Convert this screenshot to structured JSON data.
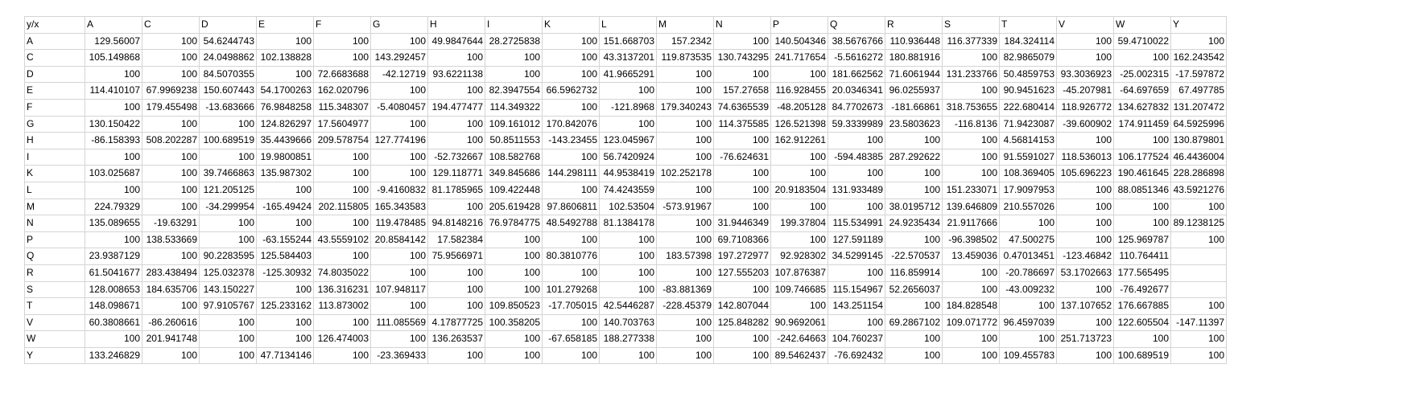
{
  "sheet": {
    "header": [
      "y/x",
      "A",
      "C",
      "D",
      "E",
      "F",
      "G",
      "H",
      "I",
      "K",
      "L",
      "M",
      "N",
      "P",
      "Q",
      "R",
      "S",
      "T",
      "V",
      "W",
      "Y"
    ],
    "rows": [
      [
        "A",
        "129.56007",
        "100",
        "54.6244743",
        "100",
        "100",
        "100",
        "49.9847644",
        "28.2725838",
        "100",
        "151.668703",
        "157.2342",
        "100",
        "140.504346",
        "38.5676766",
        "110.936448",
        "116.377339",
        "184.324114",
        "100",
        "59.4710022",
        "100"
      ],
      [
        "C",
        "105.149868",
        "100",
        "24.0498862",
        "102.138828",
        "100",
        "143.292457",
        "100",
        "100",
        "100",
        "43.3137201",
        "119.873535",
        "130.743295",
        "241.717654",
        "-5.5616272",
        "180.881916",
        "100",
        "82.9865079",
        "100",
        "100",
        "162.243542"
      ],
      [
        "D",
        "100",
        "100",
        "84.5070355",
        "100",
        "72.6683688",
        "-42.12719",
        "93.6221138",
        "100",
        "100",
        "41.9665291",
        "100",
        "100",
        "100",
        "181.662562",
        "71.6061944",
        "131.233766",
        "50.4859753",
        "93.3036923",
        "-25.002315",
        "-17.597872"
      ],
      [
        "E",
        "114.410107",
        "67.9969238",
        "150.607443",
        "54.1700263",
        "162.020796",
        "100",
        "100",
        "82.3947554",
        "66.5962732",
        "100",
        "100",
        "157.27658",
        "116.928455",
        "20.0346341",
        "96.0255937",
        "100",
        "90.9451623",
        "-45.207981",
        "-64.697659",
        "67.497785"
      ],
      [
        "F",
        "100",
        "179.455498",
        "-13.683666",
        "76.9848258",
        "115.348307",
        "-5.4080457",
        "194.477477",
        "114.349322",
        "100",
        "-121.8968",
        "179.340243",
        "74.6365539",
        "-48.205128",
        "84.7702673",
        "-181.66861",
        "318.753655",
        "222.680414",
        "118.926772",
        "134.627832",
        "131.207472"
      ],
      [
        "G",
        "130.150422",
        "100",
        "100",
        "124.826297",
        "17.5604977",
        "100",
        "100",
        "109.161012",
        "170.842076",
        "100",
        "100",
        "114.375585",
        "126.521398",
        "59.3339989",
        "23.5803623",
        "-116.8136",
        "71.9423087",
        "-39.600902",
        "174.911459",
        "64.5925996"
      ],
      [
        "H",
        "-86.158393",
        "508.202287",
        "100.689519",
        "35.4439666",
        "209.578754",
        "127.774196",
        "100",
        "50.8511553",
        "-143.23455",
        "123.045967",
        "100",
        "100",
        "162.912261",
        "100",
        "100",
        "100",
        "4.56814153",
        "100",
        "100",
        "130.879801"
      ],
      [
        "I",
        "100",
        "100",
        "100",
        "19.9800851",
        "100",
        "100",
        "-52.732667",
        "108.582768",
        "100",
        "56.7420924",
        "100",
        "-76.624631",
        "100",
        "-594.48385",
        "287.292622",
        "100",
        "91.5591027",
        "118.536013",
        "106.177524",
        "46.4436004"
      ],
      [
        "K",
        "103.025687",
        "100",
        "39.7466863",
        "135.987302",
        "100",
        "100",
        "129.118771",
        "349.845686",
        "144.298111",
        "44.9538419",
        "102.252178",
        "100",
        "100",
        "100",
        "100",
        "100",
        "108.369405",
        "105.696223",
        "190.461645",
        "228.286898"
      ],
      [
        "L",
        "100",
        "100",
        "121.205125",
        "100",
        "100",
        "-9.4160832",
        "81.1785965",
        "109.422448",
        "100",
        "74.4243559",
        "100",
        "100",
        "20.9183504",
        "131.933489",
        "100",
        "151.233071",
        "17.9097953",
        "100",
        "88.0851346",
        "43.5921276"
      ],
      [
        "M",
        "224.79329",
        "100",
        "-34.299954",
        "-165.49424",
        "202.115805",
        "165.343583",
        "100",
        "205.619428",
        "97.8606811",
        "102.53504",
        "-573.91967",
        "100",
        "100",
        "100",
        "38.0195712",
        "139.646809",
        "210.557026",
        "100",
        "100",
        "100"
      ],
      [
        "N",
        "135.089655",
        "-19.63291",
        "100",
        "100",
        "100",
        "119.478485",
        "94.8148216",
        "76.9784775",
        "48.5492788",
        "81.1384178",
        "100",
        "31.9446349",
        "199.37804",
        "115.534991",
        "24.9235434",
        "21.9117666",
        "100",
        "100",
        "100",
        "89.1238125"
      ],
      [
        "P",
        "100",
        "138.533669",
        "100",
        "-63.155244",
        "43.5559102",
        "20.8584142",
        "17.582384",
        "100",
        "100",
        "100",
        "100",
        "69.7108366",
        "100",
        "127.591189",
        "100",
        "-96.398502",
        "47.500275",
        "100",
        "125.969787",
        "100"
      ],
      [
        "Q",
        "23.9387129",
        "100",
        "90.2283595",
        "125.584403",
        "100",
        "100",
        "75.9566971",
        "100",
        "80.3810776",
        "100",
        "183.57398",
        "197.272977",
        "92.928302",
        "34.5299145",
        "-22.570537",
        "13.459036",
        "0.47013451",
        "-123.46842",
        "110.764411",
        ""
      ],
      [
        "R",
        "61.5041677",
        "283.438494",
        "125.032378",
        "-125.30932",
        "74.8035022",
        "100",
        "100",
        "100",
        "100",
        "100",
        "100",
        "127.555203",
        "107.876387",
        "100",
        "116.859914",
        "100",
        "-20.786697",
        "53.1702663",
        "177.565495",
        ""
      ],
      [
        "S",
        "128.008653",
        "184.635706",
        "143.150227",
        "100",
        "136.316231",
        "107.948117",
        "100",
        "100",
        "101.279268",
        "100",
        "-83.881369",
        "100",
        "109.746685",
        "115.154967",
        "52.2656037",
        "100",
        "-43.009232",
        "100",
        "-76.492677",
        ""
      ],
      [
        "T",
        "148.098671",
        "100",
        "97.9105767",
        "125.233162",
        "113.873002",
        "100",
        "100",
        "109.850523",
        "-17.705015",
        "42.5446287",
        "-228.45379",
        "142.807044",
        "100",
        "143.251154",
        "100",
        "184.828548",
        "100",
        "137.107652",
        "176.667885",
        "100"
      ],
      [
        "V",
        "60.3808661",
        "-86.260616",
        "100",
        "100",
        "100",
        "111.085569",
        "4.17877725",
        "100.358205",
        "100",
        "140.703763",
        "100",
        "125.848282",
        "90.9692061",
        "100",
        "69.2867102",
        "109.071772",
        "96.4597039",
        "100",
        "122.605504",
        "-147.11397"
      ],
      [
        "W",
        "100",
        "201.941748",
        "100",
        "100",
        "126.474003",
        "100",
        "136.263537",
        "100",
        "-67.658185",
        "188.277338",
        "100",
        "100",
        "-242.64663",
        "104.760237",
        "100",
        "100",
        "100",
        "251.713723",
        "100",
        "100"
      ],
      [
        "Y",
        "133.246829",
        "100",
        "100",
        "47.7134146",
        "100",
        "-23.369433",
        "100",
        "100",
        "100",
        "100",
        "100",
        "100",
        "89.5462437",
        "-76.692432",
        "100",
        "100",
        "109.455783",
        "100",
        "100.689519",
        "100"
      ]
    ]
  }
}
